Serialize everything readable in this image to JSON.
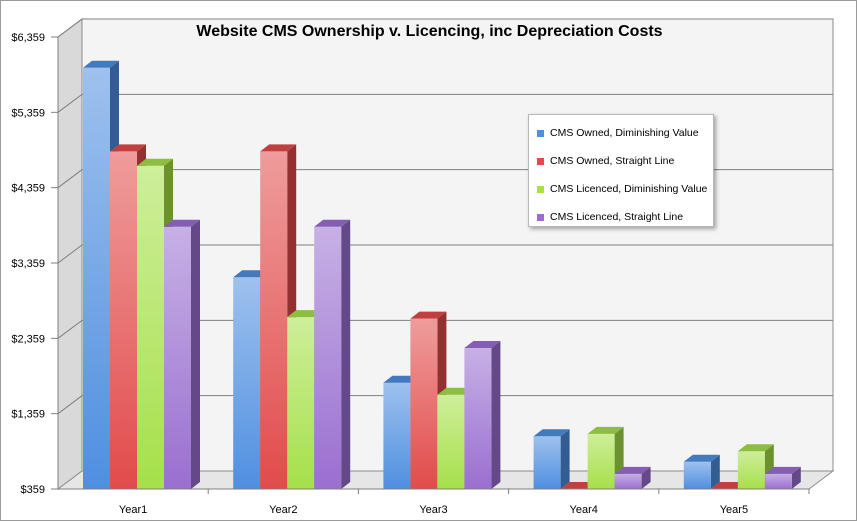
{
  "chart_data": {
    "type": "bar",
    "title": "Website CMS Ownership v. Licencing, inc Depreciation Costs",
    "categories": [
      "Year1",
      "Year2",
      "Year3",
      "Year4",
      "Year5"
    ],
    "y_ticks": [
      "$359",
      "$1,359",
      "$2,359",
      "$3,359",
      "$4,359",
      "$5,359",
      "$6,359"
    ],
    "ylim": [
      359,
      6359
    ],
    "grid": true,
    "legend_position": "right",
    "series": [
      {
        "name": "CMS Owned, Diminishing Value",
        "color": "#4f8fe0",
        "values": [
          5950,
          3170,
          1770,
          1060,
          720
        ]
      },
      {
        "name": "CMS Owned, Straight Line",
        "color": "#e24b4b",
        "values": [
          4840,
          4840,
          2620,
          359,
          359
        ]
      },
      {
        "name": "CMS Licenced, Diminishing Value",
        "color": "#a6e04a",
        "values": [
          4650,
          2640,
          1610,
          1090,
          860
        ]
      },
      {
        "name": "CMS Licenced, Straight Line",
        "color": "#9a6fd0",
        "values": [
          3840,
          3840,
          2230,
          560,
          560
        ]
      }
    ]
  }
}
